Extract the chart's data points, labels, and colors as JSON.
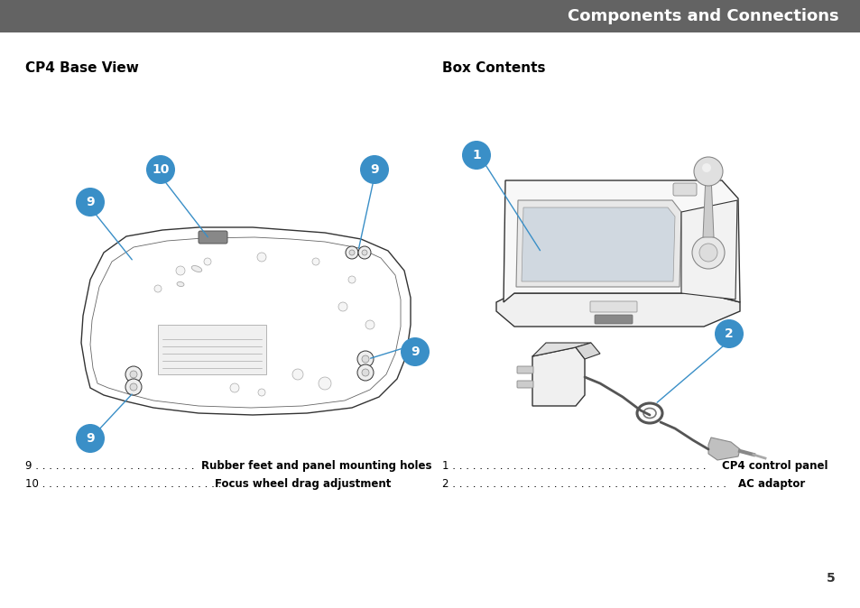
{
  "header_text": "Components and Connections",
  "header_bg": "#636363",
  "header_text_color": "#ffffff",
  "page_bg": "#ffffff",
  "left_title": "CP4 Base View",
  "right_title": "Box Contents",
  "caption_lines_left": [
    [
      "9 . . . . . . . . . . . . . . . . . . . . . . . . ",
      "Rubber feet and panel mounting holes"
    ],
    [
      "10 . . . . . . . . . . . . . . . . . . . . . . . . . . . ",
      "Focus wheel drag adjustment"
    ]
  ],
  "caption_lines_right": [
    [
      "1 . . . . . . . . . . . . . . . . . . . . . . . . . . . . . . . . . . . . . . ",
      "CP4 control panel"
    ],
    [
      "2 . . . . . . . . . . . . . . . . . . . . . . . . . . . . . . . . . . . . . . . . . ",
      "AC adaptor"
    ]
  ],
  "bubble_color": "#3a8fc7",
  "bubble_text_color": "#ffffff",
  "page_number": "5"
}
